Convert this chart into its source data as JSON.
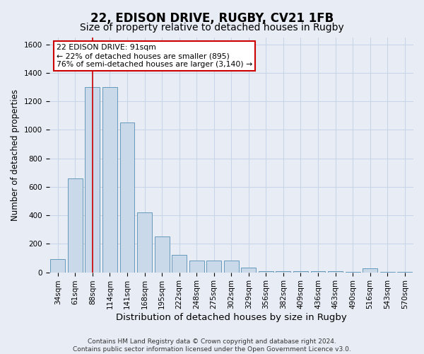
{
  "title1": "22, EDISON DRIVE, RUGBY, CV21 1FB",
  "title2": "Size of property relative to detached houses in Rugby",
  "xlabel": "Distribution of detached houses by size in Rugby",
  "ylabel": "Number of detached properties",
  "footer1": "Contains HM Land Registry data © Crown copyright and database right 2024.",
  "footer2": "Contains public sector information licensed under the Open Government Licence v3.0.",
  "categories": [
    "34sqm",
    "61sqm",
    "88sqm",
    "114sqm",
    "141sqm",
    "168sqm",
    "195sqm",
    "222sqm",
    "248sqm",
    "275sqm",
    "302sqm",
    "329sqm",
    "356sqm",
    "382sqm",
    "409sqm",
    "436sqm",
    "463sqm",
    "490sqm",
    "516sqm",
    "543sqm",
    "570sqm"
  ],
  "values": [
    90,
    660,
    1300,
    1300,
    1050,
    420,
    250,
    120,
    80,
    80,
    80,
    35,
    10,
    10,
    10,
    10,
    10,
    5,
    30,
    5,
    5
  ],
  "bar_color": "#c9d9ea",
  "bar_edge_color": "#6699bb",
  "vline_x": 2,
  "vline_color": "#cc0000",
  "annotation_line1": "22 EDISON DRIVE: 91sqm",
  "annotation_line2": "← 22% of detached houses are smaller (895)",
  "annotation_line3": "76% of semi-detached houses are larger (3,140) →",
  "annotation_box_color": "#ffffff",
  "annotation_box_edge": "#cc0000",
  "ylim": [
    0,
    1650
  ],
  "yticks": [
    0,
    200,
    400,
    600,
    800,
    1000,
    1200,
    1400,
    1600
  ],
  "grid_color": "#c8d4e8",
  "bg_color": "#e8edf5",
  "title1_fontsize": 12,
  "title2_fontsize": 10,
  "xlabel_fontsize": 9.5,
  "ylabel_fontsize": 8.5,
  "tick_fontsize": 7.5,
  "footer_fontsize": 6.5
}
